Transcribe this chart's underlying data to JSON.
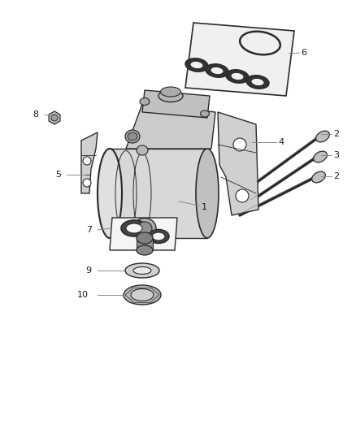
{
  "background_color": "#ffffff",
  "line_color": "#2a2a2a",
  "fill_light": "#e0e0e0",
  "fill_mid": "#c8c8c8",
  "fill_dark": "#aaaaaa",
  "fill_body": "#d4d4d4",
  "leader_color": "#888888",
  "fig_width": 4.38,
  "fig_height": 5.33,
  "dpi": 100
}
